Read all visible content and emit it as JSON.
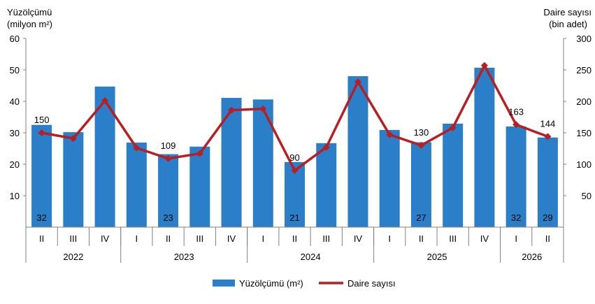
{
  "chart_data": {
    "type": "bar+line",
    "left_axis_title": [
      "Yüzölçümü",
      "(milyon m²)"
    ],
    "right_axis_title": [
      "Daire sayısı",
      "(bin adet)"
    ],
    "left_ylim": [
      0,
      60
    ],
    "left_ticks": [
      10,
      20,
      30,
      40,
      50,
      60
    ],
    "right_ylim": [
      0,
      300
    ],
    "right_ticks": [
      50,
      100,
      150,
      200,
      250,
      300
    ],
    "grid": false,
    "legend_position": "bottom",
    "categories": [
      "II",
      "III",
      "IV",
      "I",
      "II",
      "III",
      "IV",
      "I",
      "II",
      "III",
      "IV",
      "I",
      "II",
      "III",
      "IV",
      "I",
      "II"
    ],
    "year_groups": [
      {
        "label": "2022",
        "count": 3
      },
      {
        "label": "2023",
        "count": 4
      },
      {
        "label": "2024",
        "count": 4
      },
      {
        "label": "2025",
        "count": 4
      },
      {
        "label": "2026",
        "count": 2
      }
    ],
    "series": [
      {
        "name": "Yüzölçümü (m²)",
        "type": "bar",
        "axis": "left",
        "color": "#2a7fc8",
        "values": [
          32.5,
          30.2,
          44.7,
          26.9,
          23.2,
          25.6,
          41.1,
          40.6,
          20.7,
          26.7,
          48.0,
          30.9,
          27.0,
          32.9,
          50.7,
          32.0,
          28.5
        ],
        "labels": {
          "0": "32",
          "4": "23",
          "8": "21",
          "12": "27",
          "15": "32",
          "16": "29"
        }
      },
      {
        "name": "Daire sayısı",
        "type": "line",
        "axis": "right",
        "color": "#b81e22",
        "values": [
          150,
          141,
          201,
          126,
          109,
          117,
          186,
          188,
          90,
          127,
          231,
          147,
          130,
          158,
          257,
          163,
          144
        ],
        "labels": {
          "0": "150",
          "4": "109",
          "8": "90",
          "12": "130",
          "15": "163",
          "16": "144"
        }
      }
    ]
  }
}
